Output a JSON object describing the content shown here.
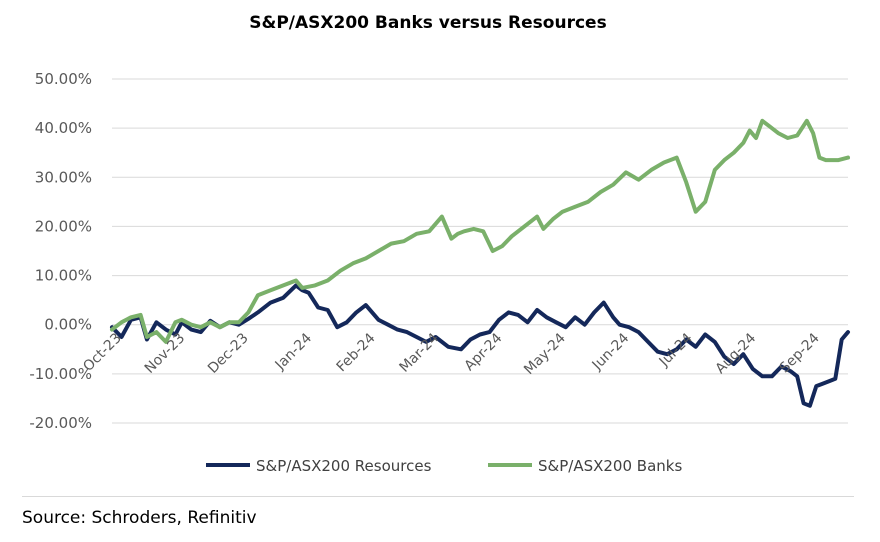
{
  "chart_data": {
    "type": "line",
    "title": "S&P/ASX200 Banks versus Resources",
    "xlabel": "",
    "ylabel": "",
    "ylim": [
      -20,
      50
    ],
    "yticks": [
      -20,
      -10,
      0,
      10,
      20,
      30,
      40,
      50
    ],
    "ytick_labels": [
      "-20.00%",
      "-10.00%",
      "0.00%",
      "10.00%",
      "20.00%",
      "30.00%",
      "40.00%",
      "50.00%"
    ],
    "x_range": [
      0,
      11.6
    ],
    "x_tick_labels": [
      "Oct-23",
      "Nov-23",
      "Dec-23",
      "Jan-24",
      "Feb-24",
      "Mar-24",
      "Apr-24",
      "May-24",
      "Jun-24",
      "Jul-24",
      "Aug-24",
      "Sep-24"
    ],
    "x_tick_positions": [
      0,
      1,
      2,
      3,
      4,
      5,
      6,
      7,
      8,
      9,
      10,
      11
    ],
    "grid": true,
    "legend": "bottom",
    "series": [
      {
        "name": "S&P/ASX200 Resources",
        "color": "#14285a",
        "x": [
          0,
          0.15,
          0.3,
          0.45,
          0.55,
          0.7,
          0.85,
          1.0,
          1.1,
          1.25,
          1.4,
          1.55,
          1.7,
          1.85,
          2.0,
          2.15,
          2.3,
          2.5,
          2.7,
          2.9,
          3.0,
          3.1,
          3.25,
          3.4,
          3.55,
          3.7,
          3.85,
          4.0,
          4.2,
          4.35,
          4.5,
          4.65,
          4.8,
          4.95,
          5.1,
          5.3,
          5.5,
          5.65,
          5.8,
          5.95,
          6.1,
          6.25,
          6.4,
          6.55,
          6.7,
          6.85,
          7.0,
          7.15,
          7.3,
          7.45,
          7.6,
          7.75,
          7.9,
          8.0,
          8.15,
          8.3,
          8.45,
          8.6,
          8.75,
          8.9,
          9.05,
          9.2,
          9.35,
          9.5,
          9.65,
          9.8,
          9.95,
          10.1,
          10.25,
          10.4,
          10.55,
          10.7,
          10.8,
          10.9,
          11.0,
          11.1,
          11.2,
          11.3,
          11.4,
          11.5,
          11.6
        ],
        "values": [
          -0.5,
          -2.5,
          1.0,
          1.5,
          -3.0,
          0.5,
          -1.0,
          -2.0,
          0.5,
          -1.0,
          -1.5,
          0.8,
          -0.5,
          0.5,
          0.0,
          1.2,
          2.5,
          4.5,
          5.5,
          8.0,
          7.0,
          6.5,
          3.5,
          3.0,
          -0.5,
          0.5,
          2.5,
          4.0,
          1.0,
          0.0,
          -1.0,
          -1.5,
          -2.5,
          -3.5,
          -2.5,
          -4.5,
          -5.0,
          -3.0,
          -2.0,
          -1.5,
          1.0,
          2.5,
          2.0,
          0.5,
          3.0,
          1.5,
          0.5,
          -0.5,
          1.5,
          0.0,
          2.5,
          4.5,
          1.5,
          0.0,
          -0.5,
          -1.5,
          -3.5,
          -5.5,
          -6.0,
          -5.0,
          -3.0,
          -4.5,
          -2.0,
          -3.5,
          -6.5,
          -8.0,
          -6.0,
          -9.0,
          -10.5,
          -10.5,
          -8.5,
          -9.5,
          -10.5,
          -16.0,
          -16.5,
          -12.5,
          -12.0,
          -11.5,
          -11.0,
          -3.0,
          -1.5
        ]
      },
      {
        "name": "S&P/ASX200 Banks",
        "color": "#7ab06a",
        "x": [
          0,
          0.15,
          0.3,
          0.45,
          0.55,
          0.7,
          0.85,
          1.0,
          1.1,
          1.25,
          1.4,
          1.55,
          1.7,
          1.85,
          2.0,
          2.15,
          2.3,
          2.5,
          2.7,
          2.9,
          3.0,
          3.2,
          3.4,
          3.6,
          3.8,
          4.0,
          4.2,
          4.4,
          4.6,
          4.8,
          5.0,
          5.2,
          5.35,
          5.45,
          5.55,
          5.7,
          5.85,
          6.0,
          6.15,
          6.3,
          6.5,
          6.7,
          6.8,
          6.95,
          7.1,
          7.3,
          7.5,
          7.7,
          7.9,
          8.1,
          8.3,
          8.5,
          8.7,
          8.9,
          9.05,
          9.2,
          9.35,
          9.5,
          9.65,
          9.8,
          9.95,
          10.05,
          10.15,
          10.25,
          10.35,
          10.5,
          10.65,
          10.8,
          10.95,
          11.05,
          11.15,
          11.25,
          11.35,
          11.45,
          11.6
        ],
        "values": [
          -1.0,
          0.5,
          1.5,
          2.0,
          -2.5,
          -1.5,
          -3.5,
          0.5,
          1.0,
          0.0,
          -0.5,
          0.5,
          -0.5,
          0.5,
          0.5,
          2.5,
          6.0,
          7.0,
          8.0,
          9.0,
          7.5,
          8.0,
          9.0,
          11.0,
          12.5,
          13.5,
          15.0,
          16.5,
          17.0,
          18.5,
          19.0,
          22.0,
          17.5,
          18.5,
          19.0,
          19.5,
          19.0,
          15.0,
          16.0,
          18.0,
          20.0,
          22.0,
          19.5,
          21.5,
          23.0,
          24.0,
          25.0,
          27.0,
          28.5,
          31.0,
          29.5,
          31.5,
          33.0,
          34.0,
          29.0,
          23.0,
          25.0,
          31.5,
          33.5,
          35.0,
          37.0,
          39.5,
          38.0,
          41.5,
          40.5,
          39.0,
          38.0,
          38.5,
          41.5,
          39.0,
          34.0,
          33.5,
          33.5,
          33.5,
          34.0
        ]
      }
    ]
  },
  "source": "Source: Schroders, Refinitiv"
}
